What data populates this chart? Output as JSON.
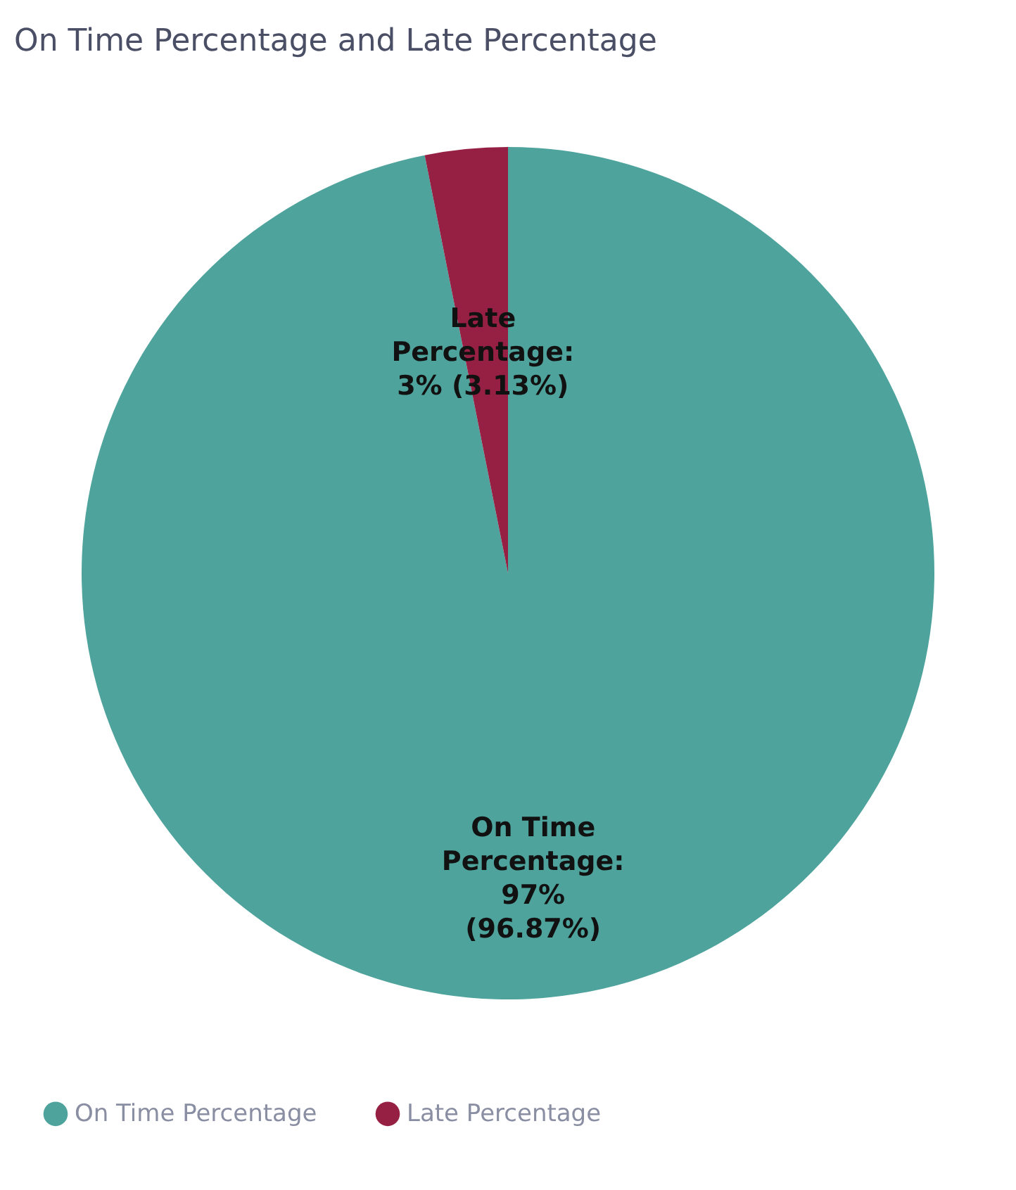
{
  "chart_data": {
    "type": "pie",
    "title": "On Time Percentage and Late Percentage",
    "categories": [
      "On Time Percentage",
      "Late Percentage"
    ],
    "values": [
      96.87,
      3.13
    ],
    "colors": [
      "#4ea39c",
      "#962044"
    ],
    "value_labels": [
      "On Time Percentage: 97% (96.87%)",
      "Late Percentage: 3% (3.13%)"
    ],
    "legend": "bottom"
  }
}
